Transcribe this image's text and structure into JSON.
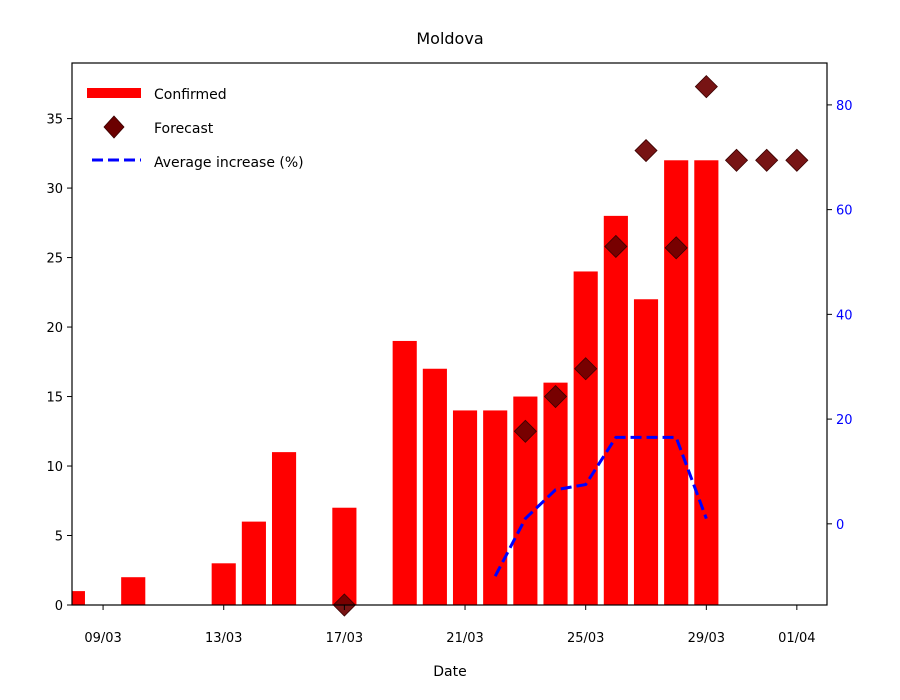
{
  "chart_data": {
    "type": "bar",
    "title": "Moldova",
    "xlabel": "Date",
    "ylabel": "",
    "y2label": "",
    "colors": {
      "confirmed": "#ff0000",
      "forecast": "#6b0000",
      "average": "#0000ff",
      "right_axis": "#0000ff"
    },
    "x_tick_labels": [
      "09/03",
      "13/03",
      "17/03",
      "21/03",
      "25/03",
      "29/03",
      "01/04"
    ],
    "x_tick_days": [
      9,
      13,
      17,
      21,
      25,
      29,
      32
    ],
    "xlim": [
      7.97,
      33.0
    ],
    "ylim": [
      0,
      39
    ],
    "y_ticks": [
      0,
      5,
      10,
      15,
      20,
      25,
      30,
      35
    ],
    "y2lim": [
      -15.5,
      88
    ],
    "y2_ticks": [
      0,
      20,
      40,
      60,
      80
    ],
    "legend": {
      "position": "upper left",
      "entries": [
        "Confirmed",
        "Forecast",
        "Average increase (%)"
      ]
    },
    "series": [
      {
        "name": "Confirmed",
        "type": "bar",
        "axis": "left",
        "x": [
          "08/03",
          "10/03",
          "13/03",
          "14/03",
          "15/03",
          "17/03",
          "19/03",
          "20/03",
          "21/03",
          "22/03",
          "23/03",
          "24/03",
          "25/03",
          "26/03",
          "27/03",
          "28/03",
          "29/03"
        ],
        "days": [
          8,
          10,
          13,
          14,
          15,
          17,
          19,
          20,
          21,
          22,
          23,
          24,
          25,
          26,
          27,
          28,
          29
        ],
        "values": [
          1,
          2,
          3,
          6,
          11,
          7,
          19,
          17,
          14,
          14,
          15,
          16,
          24,
          28,
          22,
          32,
          32
        ]
      },
      {
        "name": "Forecast",
        "type": "scatter",
        "axis": "left",
        "x": [
          "17/03",
          "23/03",
          "24/03",
          "25/03",
          "26/03",
          "27/03",
          "28/03",
          "29/03",
          "30/03",
          "31/03",
          "01/04"
        ],
        "days": [
          17,
          23,
          24,
          25,
          26,
          27,
          28,
          29,
          30,
          31,
          32
        ],
        "values": [
          0,
          12.5,
          15,
          17,
          25.8,
          32.7,
          25.7,
          37.3,
          32,
          32,
          32
        ]
      },
      {
        "name": "Average increase (%)",
        "type": "line",
        "axis": "right",
        "x": [
          "22/03",
          "23/03",
          "24/03",
          "25/03",
          "26/03",
          "27/03",
          "28/03",
          "29/03"
        ],
        "days": [
          22,
          23,
          24,
          25,
          26,
          27,
          28,
          29
        ],
        "values": [
          -10,
          1,
          6.5,
          7.5,
          16.5,
          16.5,
          16.5,
          1
        ]
      }
    ]
  }
}
